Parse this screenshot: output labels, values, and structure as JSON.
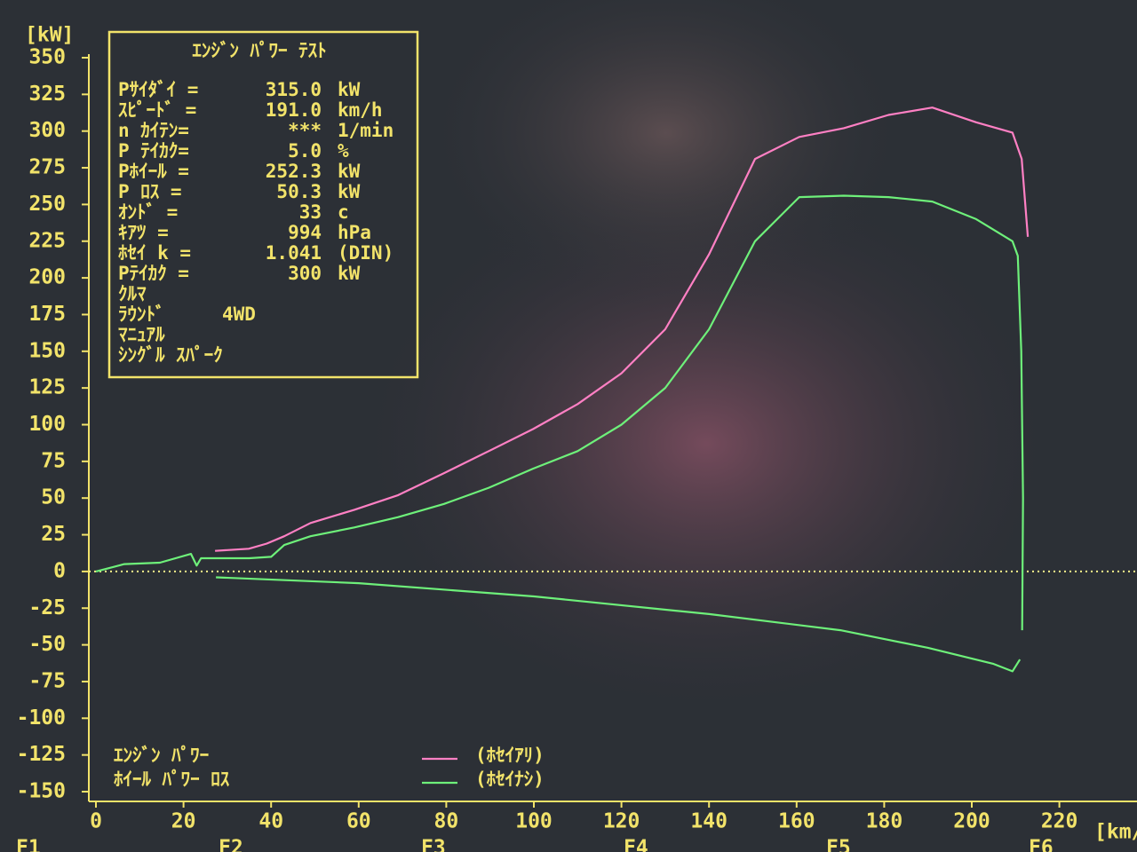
{
  "chart_data": {
    "type": "line",
    "y_label": "[kW]",
    "x_label": "[km/",
    "xlim": [
      0,
      237
    ],
    "ylim": [
      -150,
      350
    ],
    "xticks": [
      0,
      20,
      40,
      60,
      80,
      100,
      120,
      140,
      160,
      180,
      200,
      220
    ],
    "yticks": [
      -150,
      -125,
      -100,
      -75,
      -50,
      -25,
      0,
      25,
      50,
      75,
      100,
      125,
      150,
      175,
      200,
      225,
      250,
      275,
      300,
      325,
      350
    ],
    "zero_line": {
      "value": 0,
      "style": "dotted",
      "color": "#f5f08a"
    },
    "info_box": {
      "title": "ｴﾝｼﾞﾝ ﾊﾟﾜｰ ﾃｽﾄ",
      "rows": [
        [
          "Pｻｲﾀﾞｲ =",
          "315.0",
          "kW"
        ],
        [
          "ｽﾋﾟｰﾄﾞ =",
          "191.0",
          "km/h"
        ],
        [
          "n ｶｲﾃﾝ=",
          "***",
          "1/min"
        ],
        [
          "P ﾃｲｶｸ=",
          "5.0",
          "%"
        ],
        [
          "Pﾎｲｰﾙ =",
          "252.3",
          "kW"
        ],
        [
          "P ﾛｽ  =",
          "50.3",
          "kW"
        ],
        [
          "ｵﾝﾄﾞ  =",
          "33",
          "c"
        ],
        [
          "ｷｱﾂ  =",
          "994",
          "hPa"
        ],
        [
          "ﾎｾｲ  k =",
          "1.041",
          "(DIN)"
        ],
        [
          "Pﾃｲｶｸ =",
          "300",
          "kW"
        ]
      ],
      "notes": [
        [
          "ｸﾙﾏ"
        ],
        [
          "ﾗｳﾝﾄﾞ",
          "4WD"
        ],
        [
          "ﾏﾆｭｱﾙ"
        ],
        [
          "ｼﾝｸﾞﾙ ｽﾊﾟｰｸ"
        ]
      ]
    },
    "curve_labels": [
      "ｴﾝｼﾞﾝ ﾊﾟﾜｰ",
      "ﾎｲｰﾙ ﾊﾟﾜｰ ﾛｽ"
    ],
    "function_keys": [
      "F1",
      "F2",
      "F3",
      "F4",
      "F5",
      "F6"
    ],
    "series": [
      {
        "name": "(ﾎｾｲｱﾘ)",
        "color": "#ff80c4",
        "x": [
          27.2,
          34.9,
          39,
          43,
          49,
          59,
          69,
          79.5,
          89.7,
          99.8,
          110,
          120,
          130,
          140,
          150.5,
          160.6,
          170.8,
          181,
          191,
          201,
          209.3,
          211.4,
          212.8
        ],
        "values": [
          14,
          15.5,
          19,
          24,
          33,
          42,
          52,
          67,
          82,
          97,
          114,
          135,
          165,
          216,
          281,
          296,
          302,
          311,
          316,
          306,
          299,
          281,
          228
        ]
      },
      {
        "name": "(ﾎｾｲﾅｼ)",
        "color": "#6ef07a",
        "x": [
          0,
          6.5,
          14.6,
          21.7,
          23,
          24,
          35,
          40,
          43,
          49,
          59,
          69,
          79.5,
          89.7,
          99.8,
          110,
          120,
          130,
          140,
          150.5,
          160.6,
          170.8,
          181,
          191,
          201,
          209.3,
          210.5,
          211.3,
          211.7,
          211.5
        ],
        "values": [
          0,
          5,
          6,
          12,
          4,
          9,
          9,
          10,
          18,
          24,
          30,
          37,
          46,
          57,
          70,
          82,
          100,
          125,
          165,
          225,
          255,
          256,
          255,
          252,
          240,
          225,
          215,
          150,
          50,
          -40
        ]
      },
      {
        "color": "#6ef07a",
        "x": [
          27.4,
          60,
          100,
          140,
          170,
          190,
          205,
          209.3,
          211
        ],
        "values": [
          -4,
          -8,
          -17,
          -29,
          -40,
          -52,
          -63,
          -68,
          -60
        ]
      }
    ]
  }
}
